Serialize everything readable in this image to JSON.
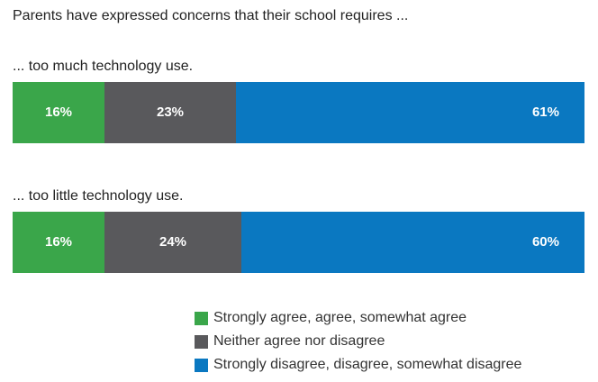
{
  "chart_data": {
    "type": "bar",
    "orientation": "horizontal",
    "stacked": true,
    "title": "Parents have expressed concerns that their school requires ...",
    "categories": [
      "... too much technology use.",
      "... too little technology use."
    ],
    "series": [
      {
        "name": "Strongly agree, agree, somewhat agree",
        "values": [
          16,
          16
        ],
        "labels": [
          "16%",
          "16%"
        ],
        "color": "#3aa64a"
      },
      {
        "name": "Neither agree nor disagree",
        "values": [
          23,
          24
        ],
        "labels": [
          "23%",
          "24%"
        ],
        "color": "#59595c"
      },
      {
        "name": "Strongly disagree, disagree, somewhat disagree",
        "values": [
          61,
          60
        ],
        "labels": [
          "61%",
          "60%"
        ],
        "color": "#0a78c1"
      }
    ],
    "xlim": [
      0,
      100
    ],
    "grid": false,
    "legend_position": "bottom-right"
  }
}
